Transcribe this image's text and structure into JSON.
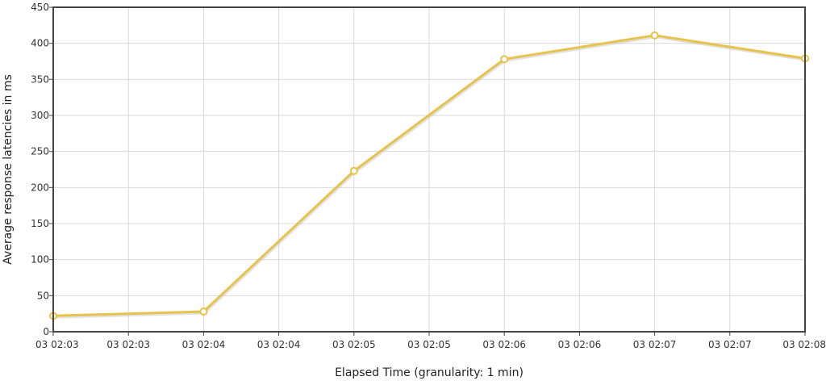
{
  "chart_data": {
    "type": "line",
    "title": "",
    "xlabel": "Elapsed Time (granularity: 1 min)",
    "ylabel": "Average response latencies in ms",
    "ylim": [
      0,
      450
    ],
    "y_ticks": [
      0,
      50,
      100,
      150,
      200,
      250,
      300,
      350,
      400,
      450
    ],
    "x_tick_labels": [
      "03 02:03",
      "03 02:03",
      "03 02:04",
      "03 02:04",
      "03 02:05",
      "03 02:05",
      "03 02:06",
      "03 02:06",
      "03 02:07",
      "03 02:07",
      "03 02:08"
    ],
    "grid": true,
    "legend": "none",
    "series": [
      {
        "color": "#e8c24a",
        "x": [
          "03 02:03",
          "03 02:04",
          "03 02:05",
          "03 02:06",
          "03 02:07",
          "03 02:08"
        ],
        "values": [
          22,
          28,
          223,
          378,
          411,
          379
        ]
      }
    ]
  }
}
